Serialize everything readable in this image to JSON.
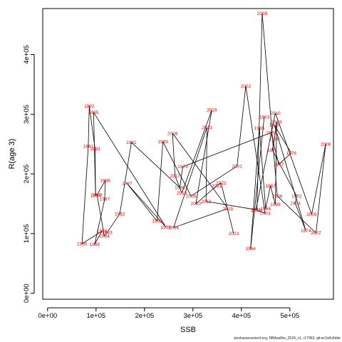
{
  "footer": "stockassessment.org, NBAsailhe_2024_v1, r17963, git:ec2a0c6dde",
  "chart_data": {
    "type": "line",
    "title": "",
    "xlabel": "SSB",
    "ylabel": "R(age 3)",
    "xlim": [
      -10000,
      590000
    ],
    "ylim": [
      -10000,
      477000
    ],
    "xticks": [
      0,
      100000,
      200000,
      300000,
      400000,
      500000
    ],
    "xtick_labels": [
      "0e+00",
      "1e+05",
      "2e+05",
      "3e+05",
      "4e+05",
      "5e+05"
    ],
    "yticks": [
      0,
      100000,
      200000,
      300000,
      400000
    ],
    "ytick_labels": [
      "0e+00",
      "1e+05",
      "2e+05",
      "3e+05",
      "4e+05"
    ],
    "grid": false,
    "line_color": "#000000",
    "label_color": "#ff0000",
    "points": [
      {
        "year": "1963",
        "x": 447000,
        "y": 295000
      },
      {
        "year": "1964",
        "x": 419000,
        "y": 75000
      },
      {
        "year": "1965",
        "x": 437000,
        "y": 277000
      },
      {
        "year": "1966",
        "x": 450000,
        "y": 142000
      },
      {
        "year": "1967",
        "x": 460000,
        "y": 180000
      },
      {
        "year": "1968",
        "x": 470000,
        "y": 149000
      },
      {
        "year": "1969",
        "x": 473000,
        "y": 287000
      },
      {
        "year": "1970",
        "x": 468000,
        "y": 258000
      },
      {
        "year": "1971",
        "x": 464000,
        "y": 240000
      },
      {
        "year": "1972",
        "x": 514000,
        "y": 163000
      },
      {
        "year": "1973",
        "x": 511000,
        "y": 151000
      },
      {
        "year": "1974",
        "x": 533000,
        "y": 105000
      },
      {
        "year": "1975",
        "x": 468000,
        "y": 282000
      },
      {
        "year": "1976",
        "x": 503000,
        "y": 235000
      },
      {
        "year": "1977",
        "x": 477000,
        "y": 216000
      },
      {
        "year": "1978",
        "x": 461000,
        "y": 269000
      },
      {
        "year": "1979",
        "x": 279000,
        "y": 212000
      },
      {
        "year": "1980",
        "x": 273000,
        "y": 177000
      },
      {
        "year": "1981",
        "x": 173000,
        "y": 253000
      },
      {
        "year": "1982",
        "x": 149000,
        "y": 133000
      },
      {
        "year": "1983",
        "x": 123000,
        "y": 102000
      },
      {
        "year": "1984",
        "x": 117000,
        "y": 96000
      },
      {
        "year": "1985",
        "x": 102000,
        "y": 165000
      },
      {
        "year": "1986",
        "x": 119000,
        "y": 189000
      },
      {
        "year": "1987",
        "x": 118000,
        "y": 158000
      },
      {
        "year": "1988",
        "x": 97000,
        "y": 82000
      },
      {
        "year": "1989",
        "x": 112000,
        "y": 104000
      },
      {
        "year": "1990",
        "x": 71000,
        "y": 83000
      },
      {
        "year": "1991",
        "x": 84000,
        "y": 246000
      },
      {
        "year": "1992",
        "x": 86000,
        "y": 314000
      },
      {
        "year": "1993",
        "x": 98000,
        "y": 242000
      },
      {
        "year": "1994",
        "x": 99000,
        "y": 164000
      },
      {
        "year": "1995",
        "x": 95000,
        "y": 303000
      },
      {
        "year": "1996",
        "x": 244000,
        "y": 111000
      },
      {
        "year": "1997",
        "x": 164000,
        "y": 184000
      },
      {
        "year": "1998",
        "x": 226000,
        "y": 121000
      },
      {
        "year": "1999",
        "x": 238000,
        "y": 254000
      },
      {
        "year": "2000",
        "x": 296000,
        "y": 163000
      },
      {
        "year": "2001",
        "x": 391000,
        "y": 213000
      },
      {
        "year": "2002",
        "x": 409000,
        "y": 347000
      },
      {
        "year": "2003",
        "x": 449000,
        "y": 134000
      },
      {
        "year": "2004",
        "x": 432000,
        "y": 139000
      },
      {
        "year": "2005",
        "x": 443000,
        "y": 469000
      },
      {
        "year": "2006",
        "x": 474000,
        "y": 163000
      },
      {
        "year": "2007",
        "x": 554000,
        "y": 101000
      },
      {
        "year": "2008",
        "x": 574000,
        "y": 250000
      },
      {
        "year": "2009",
        "x": 545000,
        "y": 132000
      },
      {
        "year": "2010",
        "x": 470000,
        "y": 302000
      },
      {
        "year": "2011",
        "x": 430000,
        "y": 140000
      },
      {
        "year": "2012",
        "x": 327000,
        "y": 154000
      },
      {
        "year": "2013",
        "x": 329000,
        "y": 278000
      },
      {
        "year": "2014",
        "x": 260000,
        "y": 110000
      },
      {
        "year": "2015",
        "x": 372000,
        "y": 142000
      },
      {
        "year": "2016",
        "x": 258000,
        "y": 268000
      },
      {
        "year": "2017",
        "x": 263000,
        "y": 197000
      },
      {
        "year": "2018",
        "x": 277000,
        "y": 168000
      },
      {
        "year": "2019",
        "x": 339000,
        "y": 307000
      },
      {
        "year": "2020",
        "x": 306000,
        "y": 150000
      },
      {
        "year": "2021",
        "x": 349000,
        "y": 180000
      },
      {
        "year": "2022",
        "x": 358000,
        "y": 185000
      },
      {
        "year": "2023",
        "x": 384000,
        "y": 100000
      }
    ]
  }
}
